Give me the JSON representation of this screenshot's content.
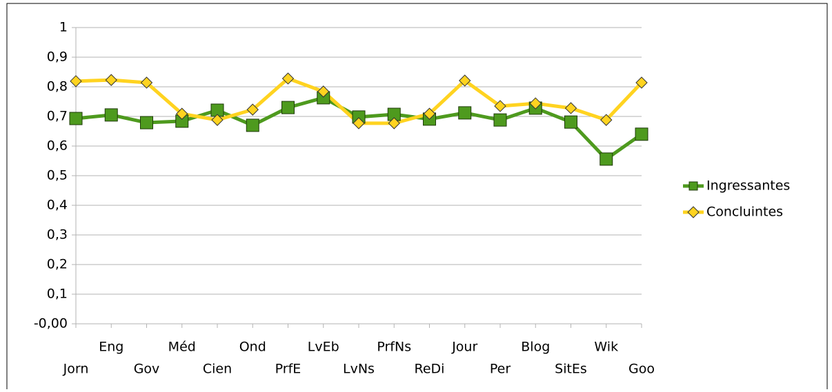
{
  "chart_data": {
    "type": "line",
    "categories": [
      "Jorn",
      "Eng",
      "Gov",
      "Méd",
      "Cien",
      "Ond",
      "PrfE",
      "LvEb",
      "LvNs",
      "PrfNs",
      "ReDi",
      "Jour",
      "Per",
      "Blog",
      "SitEs",
      "Wik",
      "Goo"
    ],
    "series": [
      {
        "name": "Ingressantes",
        "color": "#4e9a1e",
        "marker": "square",
        "values": [
          0.693,
          0.705,
          0.679,
          0.684,
          0.721,
          0.67,
          0.73,
          0.763,
          0.698,
          0.707,
          0.691,
          0.712,
          0.688,
          0.728,
          0.681,
          0.556,
          0.64
        ]
      },
      {
        "name": "Concluintes",
        "color": "#ffd320",
        "marker": "diamond",
        "values": [
          0.819,
          0.823,
          0.814,
          0.709,
          0.688,
          0.723,
          0.828,
          0.784,
          0.677,
          0.677,
          0.709,
          0.821,
          0.735,
          0.744,
          0.728,
          0.688,
          0.814
        ]
      }
    ],
    "ylim": [
      0,
      1
    ],
    "yticks": [
      {
        "value": 0,
        "label": "-0,00"
      },
      {
        "value": 0.1,
        "label": "0,1"
      },
      {
        "value": 0.2,
        "label": "0,2"
      },
      {
        "value": 0.3,
        "label": "0,3"
      },
      {
        "value": 0.4,
        "label": "0,4"
      },
      {
        "value": 0.5,
        "label": "0,5"
      },
      {
        "value": 0.6,
        "label": "0,6"
      },
      {
        "value": 0.7,
        "label": "0,7"
      },
      {
        "value": 0.8,
        "label": "0,8"
      },
      {
        "value": 0.9,
        "label": "0,9"
      },
      1
    ],
    "grid": true,
    "legend": "right"
  }
}
